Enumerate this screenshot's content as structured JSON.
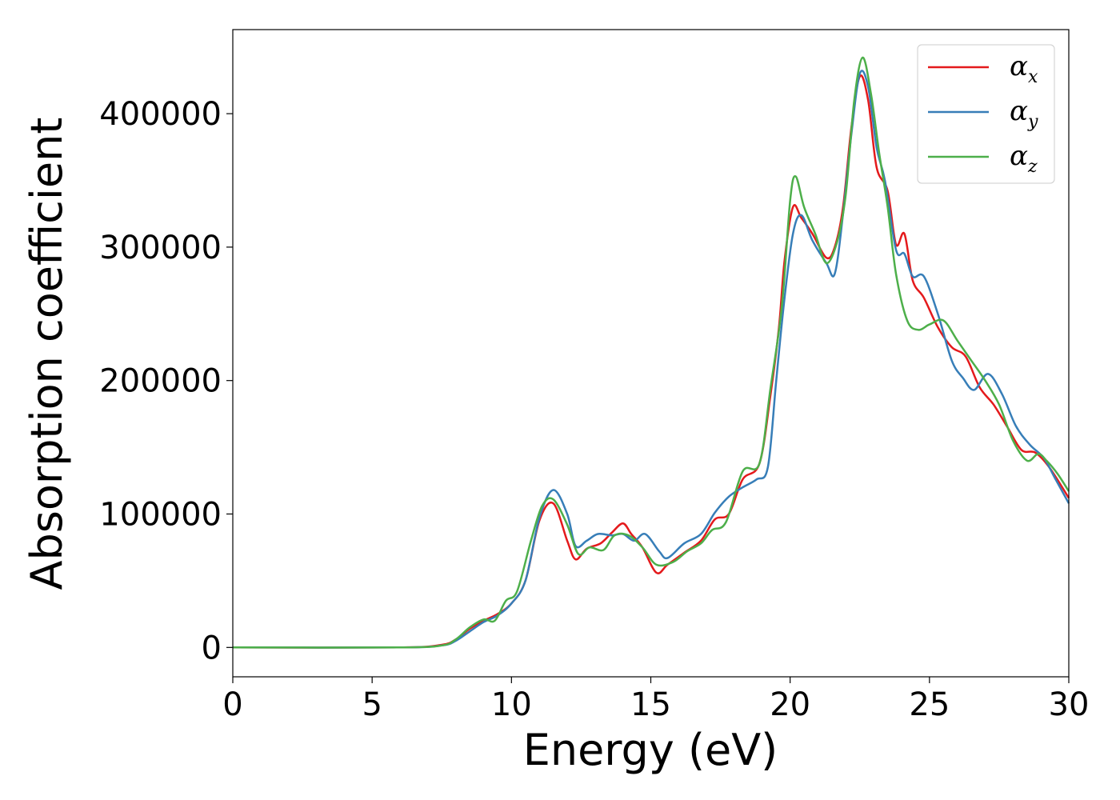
{
  "chart_data": {
    "type": "line",
    "xlabel": "Energy (eV)",
    "ylabel": "Absorption coefficient",
    "xlim": [
      0,
      30
    ],
    "ylim": [
      -22000,
      463000
    ],
    "x_ticks": [
      0,
      5,
      10,
      15,
      20,
      25,
      30
    ],
    "y_ticks": [
      0,
      100000,
      200000,
      300000,
      400000
    ],
    "x_tick_labels": [
      "0",
      "5",
      "10",
      "15",
      "20",
      "25",
      "30"
    ],
    "y_tick_labels": [
      "0",
      "100000",
      "200000",
      "300000",
      "400000"
    ],
    "grid": false,
    "legend_position": "top-right",
    "series": [
      {
        "name": "α",
        "subscript": "x",
        "color": "#e41a1c",
        "points": [
          [
            0,
            0
          ],
          [
            6,
            0
          ],
          [
            7.5,
            2000
          ],
          [
            8,
            6000
          ],
          [
            8.5,
            14000
          ],
          [
            9,
            20000
          ],
          [
            9.5,
            25000
          ],
          [
            10,
            33000
          ],
          [
            10.5,
            50000
          ],
          [
            11,
            95000
          ],
          [
            11.5,
            108000
          ],
          [
            12,
            80000
          ],
          [
            12.3,
            66000
          ],
          [
            12.7,
            74000
          ],
          [
            13.2,
            78000
          ],
          [
            13.6,
            86000
          ],
          [
            14,
            93000
          ],
          [
            14.3,
            85000
          ],
          [
            14.7,
            75000
          ],
          [
            15.2,
            56000
          ],
          [
            15.6,
            62000
          ],
          [
            16.2,
            71000
          ],
          [
            16.8,
            80000
          ],
          [
            17.3,
            96000
          ],
          [
            17.8,
            100000
          ],
          [
            18.3,
            126000
          ],
          [
            18.9,
            138000
          ],
          [
            19.3,
            190000
          ],
          [
            19.6,
            240000
          ],
          [
            19.8,
            290000
          ],
          [
            20.1,
            330000
          ],
          [
            20.4,
            322000
          ],
          [
            20.8,
            310000
          ],
          [
            21.3,
            292000
          ],
          [
            21.6,
            300000
          ],
          [
            21.9,
            330000
          ],
          [
            22.2,
            390000
          ],
          [
            22.5,
            428000
          ],
          [
            22.8,
            410000
          ],
          [
            23.1,
            360000
          ],
          [
            23.5,
            342000
          ],
          [
            23.8,
            302000
          ],
          [
            24.1,
            310000
          ],
          [
            24.4,
            275000
          ],
          [
            24.8,
            262000
          ],
          [
            25.3,
            240000
          ],
          [
            25.8,
            225000
          ],
          [
            26.3,
            218000
          ],
          [
            26.8,
            195000
          ],
          [
            27.3,
            182000
          ],
          [
            27.8,
            165000
          ],
          [
            28.3,
            148000
          ],
          [
            28.8,
            146000
          ],
          [
            29.3,
            135000
          ],
          [
            30,
            112000
          ]
        ]
      },
      {
        "name": "α",
        "subscript": "y",
        "color": "#377eb8",
        "points": [
          [
            0,
            0
          ],
          [
            6,
            0
          ],
          [
            7.5,
            1500
          ],
          [
            8,
            5000
          ],
          [
            8.5,
            12000
          ],
          [
            9,
            19000
          ],
          [
            9.5,
            24000
          ],
          [
            10,
            33000
          ],
          [
            10.5,
            50000
          ],
          [
            11,
            97000
          ],
          [
            11.5,
            118000
          ],
          [
            12,
            100000
          ],
          [
            12.3,
            76000
          ],
          [
            12.7,
            80000
          ],
          [
            13.1,
            85000
          ],
          [
            13.6,
            84000
          ],
          [
            14,
            85000
          ],
          [
            14.4,
            80000
          ],
          [
            14.8,
            85000
          ],
          [
            15.3,
            72000
          ],
          [
            15.6,
            67000
          ],
          [
            16.2,
            78000
          ],
          [
            16.8,
            85000
          ],
          [
            17.3,
            101000
          ],
          [
            17.8,
            113000
          ],
          [
            18.3,
            120000
          ],
          [
            18.8,
            126000
          ],
          [
            19.2,
            135000
          ],
          [
            19.5,
            200000
          ],
          [
            19.8,
            262000
          ],
          [
            20.1,
            310000
          ],
          [
            20.4,
            324000
          ],
          [
            20.8,
            305000
          ],
          [
            21.3,
            288000
          ],
          [
            21.6,
            280000
          ],
          [
            21.9,
            325000
          ],
          [
            22.2,
            385000
          ],
          [
            22.5,
            430000
          ],
          [
            22.8,
            420000
          ],
          [
            23.1,
            375000
          ],
          [
            23.4,
            350000
          ],
          [
            23.8,
            298000
          ],
          [
            24.1,
            295000
          ],
          [
            24.4,
            278000
          ],
          [
            24.8,
            278000
          ],
          [
            25.3,
            250000
          ],
          [
            25.8,
            215000
          ],
          [
            26.2,
            202000
          ],
          [
            26.6,
            193000
          ],
          [
            27.1,
            205000
          ],
          [
            27.6,
            190000
          ],
          [
            28.1,
            166000
          ],
          [
            28.6,
            152000
          ],
          [
            29.1,
            142000
          ],
          [
            29.5,
            127000
          ],
          [
            30,
            108000
          ]
        ]
      },
      {
        "name": "α",
        "subscript": "z",
        "color": "#4daf4a",
        "points": [
          [
            0,
            0
          ],
          [
            6,
            0
          ],
          [
            7.5,
            1500
          ],
          [
            8,
            6000
          ],
          [
            8.5,
            15000
          ],
          [
            9,
            21000
          ],
          [
            9.4,
            20000
          ],
          [
            9.8,
            35000
          ],
          [
            10.2,
            42000
          ],
          [
            10.7,
            80000
          ],
          [
            11.1,
            106000
          ],
          [
            11.5,
            111000
          ],
          [
            12,
            92000
          ],
          [
            12.4,
            70000
          ],
          [
            12.8,
            75000
          ],
          [
            13.3,
            73000
          ],
          [
            13.7,
            84000
          ],
          [
            14.2,
            84000
          ],
          [
            14.7,
            75000
          ],
          [
            15.2,
            62000
          ],
          [
            15.8,
            64000
          ],
          [
            16.3,
            72000
          ],
          [
            16.8,
            78000
          ],
          [
            17.2,
            88000
          ],
          [
            17.7,
            94000
          ],
          [
            18.3,
            132000
          ],
          [
            18.9,
            138000
          ],
          [
            19.3,
            195000
          ],
          [
            19.7,
            255000
          ],
          [
            20.0,
            335000
          ],
          [
            20.2,
            353000
          ],
          [
            20.5,
            330000
          ],
          [
            20.9,
            310000
          ],
          [
            21.3,
            288000
          ],
          [
            21.7,
            305000
          ],
          [
            22.0,
            340000
          ],
          [
            22.3,
            410000
          ],
          [
            22.6,
            442000
          ],
          [
            22.9,
            415000
          ],
          [
            23.2,
            370000
          ],
          [
            23.5,
            330000
          ],
          [
            23.8,
            280000
          ],
          [
            24.2,
            245000
          ],
          [
            24.6,
            238000
          ],
          [
            25.0,
            242000
          ],
          [
            25.5,
            245000
          ],
          [
            26.0,
            230000
          ],
          [
            26.5,
            215000
          ],
          [
            27.0,
            200000
          ],
          [
            27.5,
            182000
          ],
          [
            28.0,
            155000
          ],
          [
            28.5,
            140000
          ],
          [
            28.9,
            145000
          ],
          [
            29.2,
            140000
          ],
          [
            29.6,
            130000
          ],
          [
            30,
            117000
          ]
        ]
      }
    ]
  }
}
